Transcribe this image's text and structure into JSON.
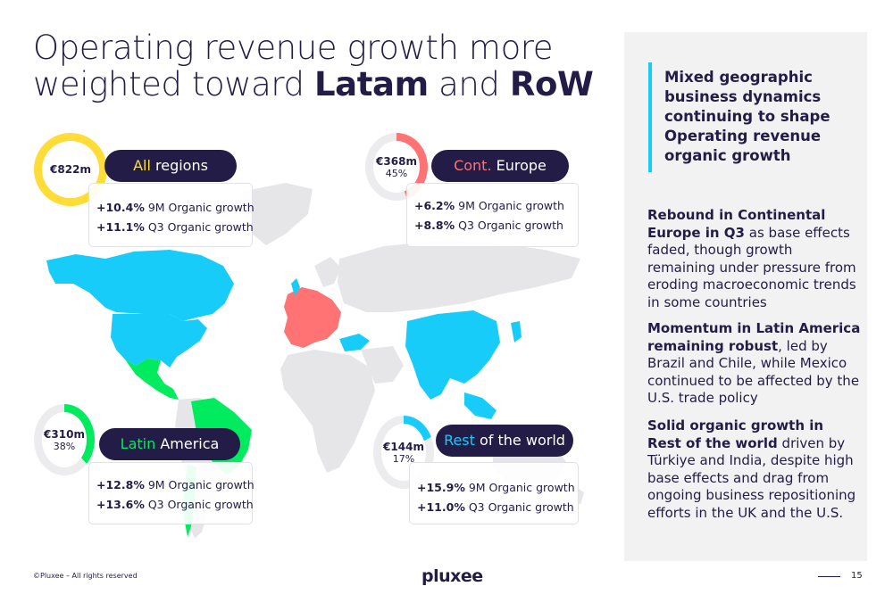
{
  "title": {
    "part1": "Operating revenue growth more weighted toward ",
    "bold1": "Latam",
    "and": " and ",
    "bold2": "RoW"
  },
  "regions": {
    "all": {
      "amount": "€822m",
      "name_accent": "All",
      "name_rest": " regions",
      "accent_color": "#ffdc37",
      "ring_color": "#ffdc37",
      "share": 1.0,
      "line1_bold": "+10.4%",
      "line1_rest": " 9M Organic growth",
      "line2_bold": "+11.1%",
      "line2_rest": " Q3 Organic growth"
    },
    "europe": {
      "amount": "€368m",
      "pct": "45%",
      "name_accent": "Cont.",
      "name_rest": " Europe",
      "accent_color": "#ff7375",
      "ring_color": "#ff7375",
      "share": 0.45,
      "line1_bold": "+6.2%",
      "line1_rest": " 9M Organic growth",
      "line2_bold": "+8.8%",
      "line2_rest": " Q3 Organic growth"
    },
    "latam": {
      "amount": "€310m",
      "pct": "38%",
      "name_accent": "Latin",
      "name_rest": " America",
      "accent_color": "#00eb5e",
      "ring_color": "#00eb5e",
      "share": 0.38,
      "line1_bold": "+12.8%",
      "line1_rest": " 9M Organic growth",
      "line2_bold": "+13.6%",
      "line2_rest": " Q3 Organic growth"
    },
    "row": {
      "amount": "€144m",
      "pct": "17%",
      "name_accent": "Rest",
      "name_rest": " of the world",
      "accent_color": "#17ccf9",
      "ring_color": "#17ccf9",
      "share": 0.17,
      "line1_bold": "+15.9%",
      "line1_rest": " 9M Organic growth",
      "line2_bold": "+11.0%",
      "line2_rest": " Q3 Organic growth"
    }
  },
  "panel": {
    "heading": "Mixed geographic business dynamics continuing to shape Operating revenue organic growth",
    "p1_bold": "Rebound in Continental Europe in Q3",
    "p1_rest": " as base effects faded, though growth remaining under pressure from eroding macroeconomic trends in some countries",
    "p2_bold": "Momentum in Latin America remaining robust",
    "p2_rest": ", led by Brazil and Chile, while Mexico continued to be affected by the U.S. trade policy",
    "p3_bold": "Solid organic growth in Rest of the world",
    "p3_rest": " driven by Türkiye and India, despite high base effects and drag from ongoing business repositioning efforts in the UK and the U.S."
  },
  "footer": {
    "copyright": "©Pluxee – All rights reserved",
    "logo": "pluxee",
    "page": "15"
  },
  "colors": {
    "navy": "#221c46",
    "map_grey": "#e6e6e9",
    "cyan": "#17ccf9",
    "coral": "#ff7375",
    "green": "#00eb5e",
    "yellow": "#ffdc37"
  }
}
